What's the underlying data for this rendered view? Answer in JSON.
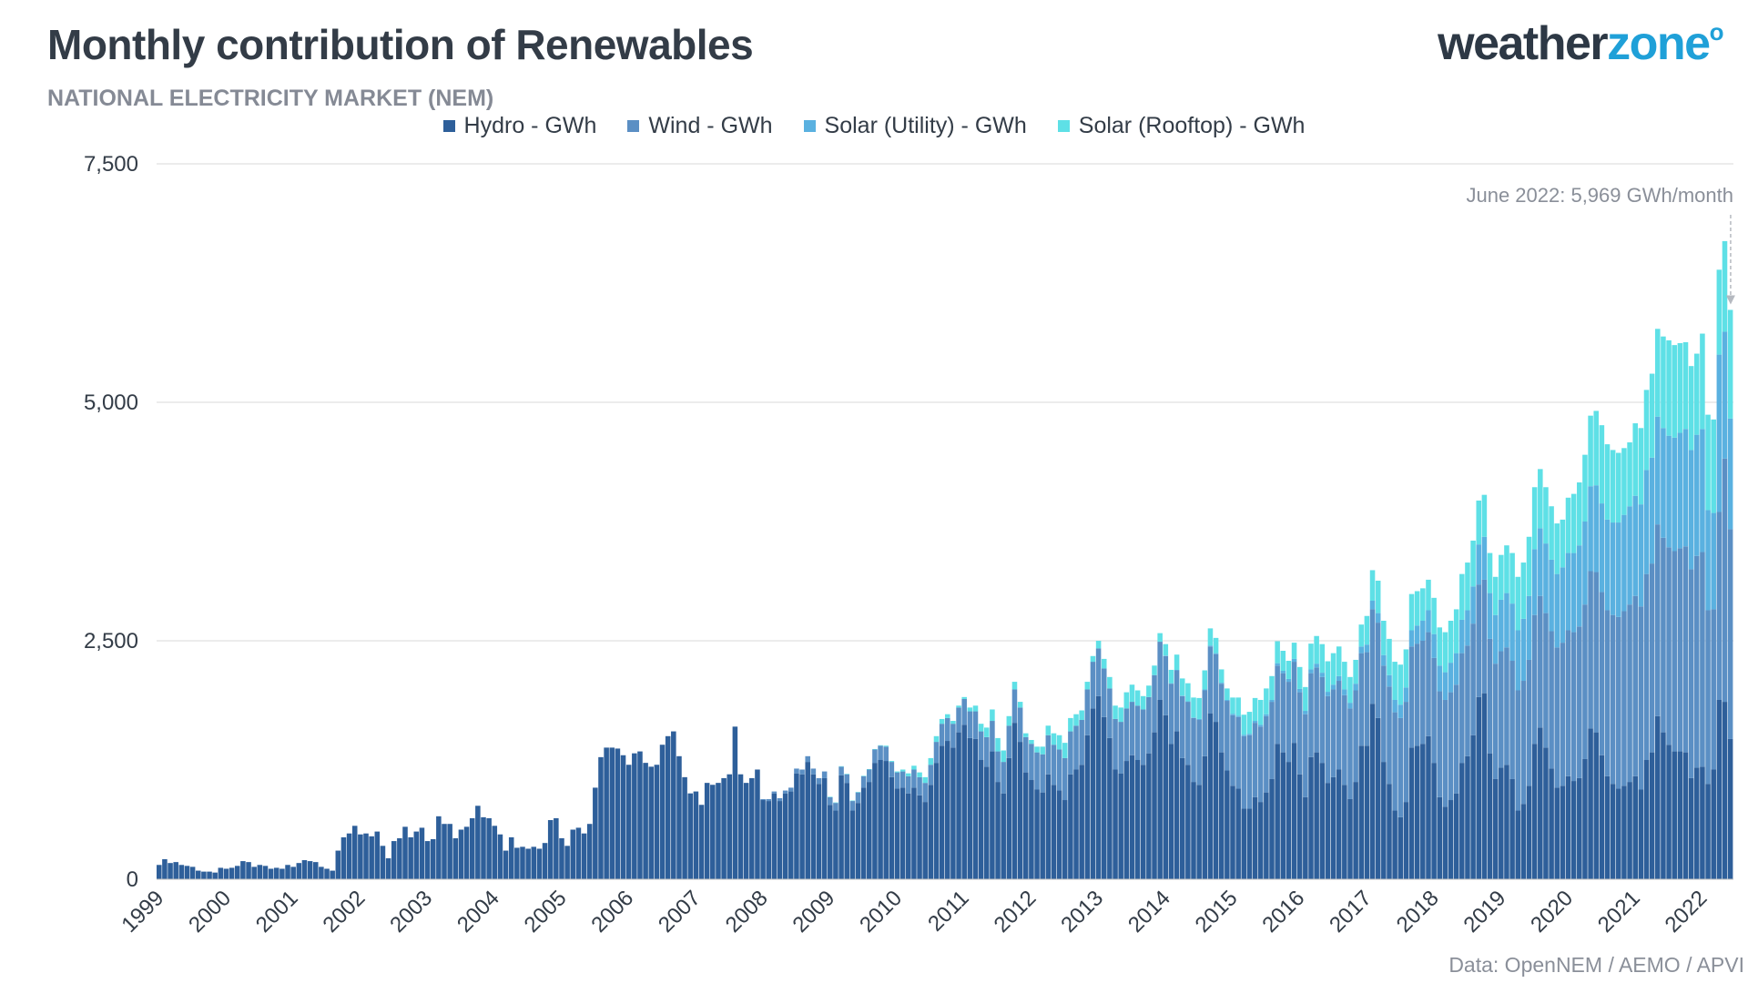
{
  "header": {
    "title": "Monthly contribution of Renewables",
    "subtitle": "NATIONAL ELECTRICITY MARKET (NEM)",
    "logo_part1": "weather",
    "logo_part2": "zone",
    "logo_degree": "o"
  },
  "footer": {
    "source": "Data: OpenNEM / AEMO /  APVI"
  },
  "colors": {
    "hydro": "#2e5f9a",
    "wind": "#5b8fc4",
    "solar_utility": "#5ab1e0",
    "solar_rooftop": "#5ee0e6",
    "gridline": "#d9d9d9",
    "annotation": "#b5b9c0"
  },
  "chart_data": {
    "type": "bar",
    "stacked": true,
    "title": "Monthly contribution of Renewables",
    "subtitle": "NATIONAL ELECTRICITY MARKET (NEM)",
    "ylim": [
      0,
      7500
    ],
    "yticks": [
      "0",
      "2,500",
      "5,000",
      "7,500"
    ],
    "ytick_values": [
      0,
      2500,
      5000,
      7500
    ],
    "grid": true,
    "legend_position": "top-center",
    "x_start": "1999-01",
    "x_end": "2022-06",
    "xtick_labels": [
      "1999",
      "2000",
      "2001",
      "2002",
      "2003",
      "2004",
      "2005",
      "2006",
      "2007",
      "2008",
      "2009",
      "2010",
      "2011",
      "2012",
      "2013",
      "2014",
      "2015",
      "2016",
      "2017",
      "2018",
      "2019",
      "2020",
      "2021",
      "2022"
    ],
    "legend": [
      "Hydro - GWh",
      "Wind - GWh",
      "Solar (Utility) - GWh",
      "Solar (Rooftop) - GWh"
    ],
    "annotation": {
      "text": "June 2022: 5,969 GWh/month",
      "date": "2022-06",
      "value": 5969
    },
    "series": [
      {
        "name": "Hydro - GWh",
        "key": "hydro",
        "values": [
          150,
          210,
          170,
          180,
          150,
          140,
          130,
          90,
          80,
          80,
          70,
          120,
          110,
          120,
          140,
          190,
          180,
          130,
          150,
          140,
          110,
          120,
          110,
          150,
          130,
          170,
          200,
          190,
          180,
          130,
          110,
          90,
          300,
          440,
          480,
          560,
          470,
          480,
          450,
          500,
          350,
          220,
          400,
          430,
          550,
          440,
          500,
          540,
          400,
          420,
          660,
          580,
          580,
          430,
          520,
          550,
          640,
          770,
          650,
          640,
          560,
          470,
          300,
          440,
          330,
          340,
          320,
          340,
          320,
          380,
          620,
          640,
          430,
          350,
          520,
          540,
          480,
          580,
          960,
          1280,
          1380,
          1380,
          1370,
          1300,
          1200,
          1320,
          1340,
          1220,
          1180,
          1200,
          1410,
          1500,
          1550,
          1290,
          1070,
          900,
          920,
          780,
          1010,
          990,
          1010,
          1060,
          1100,
          1600,
          1100,
          1010,
          1060,
          1150,
          830,
          820,
          900,
          820,
          900,
          920,
          1110,
          1100,
          1230,
          1100,
          1000,
          1060,
          780,
          720,
          1090,
          1010,
          720,
          800,
          960,
          1020,
          1220,
          1250,
          1240,
          1070,
          950,
          960,
          900,
          960,
          880,
          810,
          990,
          1220,
          1400,
          1450,
          1380,
          1540,
          1620,
          1480,
          1470,
          1250,
          1180,
          1340,
          1020,
          900,
          1270,
          1640,
          1440,
          1120,
          1040,
          940,
          910,
          1100,
          990,
          930,
          830,
          1100,
          1150,
          1200,
          1510,
          1790,
          1920,
          1700,
          1480,
          1150,
          1110,
          1240,
          1300,
          1250,
          1200,
          1320,
          1540,
          1880,
          1720,
          1420,
          1550,
          1270,
          1200,
          1020,
          990,
          1290,
          1740,
          1650,
          1330,
          1140,
          980,
          950,
          740,
          740,
          860,
          810,
          910,
          1050,
          1420,
          1330,
          1230,
          1430,
          1100,
          860,
          1280,
          1330,
          1220,
          1010,
          1070,
          1150,
          990,
          840,
          1020,
          1400,
          1400,
          1840,
          1690,
          1230,
          1000,
          720,
          650,
          810,
          1380,
          1400,
          1420,
          1500,
          1220,
          860,
          760,
          830,
          900,
          1220,
          1290,
          1510,
          1910,
          1950,
          1320,
          1050,
          1170,
          1200,
          1050,
          720,
          790,
          980,
          1420,
          1590,
          1380,
          1160,
          960,
          980,
          1080,
          1030,
          1060,
          1260,
          1580,
          1540,
          1300,
          1080,
          1000,
          950,
          980,
          1020,
          1080,
          940,
          1250,
          1330,
          1710,
          1540,
          1410,
          1340,
          1340,
          1330,
          1060,
          1170,
          1180,
          1000,
          1150,
          1880,
          1860,
          1470
        ]
      },
      {
        "name": "Wind - GWh",
        "key": "wind",
        "values": [
          0,
          0,
          0,
          0,
          0,
          0,
          0,
          0,
          0,
          0,
          0,
          0,
          0,
          0,
          0,
          0,
          0,
          0,
          0,
          0,
          0,
          0,
          0,
          0,
          0,
          0,
          0,
          0,
          0,
          0,
          0,
          0,
          0,
          0,
          0,
          0,
          0,
          0,
          0,
          0,
          0,
          0,
          0,
          0,
          0,
          0,
          0,
          0,
          0,
          0,
          0,
          0,
          0,
          0,
          0,
          0,
          0,
          0,
          0,
          0,
          0,
          0,
          0,
          0,
          0,
          0,
          0,
          0,
          0,
          0,
          0,
          0,
          0,
          0,
          0,
          0,
          0,
          0,
          0,
          0,
          0,
          0,
          0,
          0,
          0,
          0,
          0,
          0,
          0,
          0,
          0,
          0,
          0,
          0,
          0,
          0,
          0,
          0,
          0,
          0,
          0,
          0,
          0,
          0,
          0,
          0,
          0,
          0,
          10,
          20,
          20,
          30,
          30,
          40,
          50,
          50,
          60,
          60,
          60,
          70,
          80,
          80,
          90,
          90,
          100,
          110,
          120,
          130,
          140,
          150,
          150,
          160,
          170,
          170,
          180,
          190,
          190,
          200,
          210,
          220,
          230,
          240,
          250,
          260,
          270,
          280,
          290,
          300,
          310,
          320,
          320,
          330,
          340,
          350,
          360,
          370,
          380,
          390,
          400,
          410,
          420,
          430,
          440,
          450,
          460,
          470,
          480,
          490,
          500,
          510,
          520,
          530,
          540,
          550,
          560,
          570,
          580,
          590,
          600,
          610,
          620,
          630,
          640,
          650,
          660,
          670,
          680,
          690,
          700,
          710,
          720,
          730,
          740,
          750,
          760,
          770,
          780,
          790,
          800,
          810,
          820,
          830,
          840,
          850,
          860,
          870,
          880,
          890,
          900,
          910,
          920,
          930,
          940,
          950,
          960,
          970,
          980,
          990,
          1000,
          1010,
          1020,
          1030,
          1040,
          1050,
          1060,
          1070,
          1080,
          1090,
          1100,
          1110,
          1120,
          1130,
          1140,
          1150,
          1160,
          1170,
          1180,
          1190,
          1200,
          1210,
          1220,
          1230,
          1240,
          1260,
          1290,
          1320,
          1350,
          1380,
          1410,
          1440,
          1470,
          1500,
          1530,
          1560,
          1590,
          1620,
          1650,
          1680,
          1710,
          1740,
          1770,
          1800,
          1830,
          1860,
          1890,
          1920,
          1950,
          1980,
          2010,
          2040,
          2070,
          2100,
          2130,
          2160,
          2190,
          2220,
          2250,
          1820,
          1680,
          1970,
          2550,
          2200
        ]
      },
      {
        "name": "Solar (Utility) - GWh",
        "key": "solar_utility",
        "values": [
          0,
          0,
          0,
          0,
          0,
          0,
          0,
          0,
          0,
          0,
          0,
          0,
          0,
          0,
          0,
          0,
          0,
          0,
          0,
          0,
          0,
          0,
          0,
          0,
          0,
          0,
          0,
          0,
          0,
          0,
          0,
          0,
          0,
          0,
          0,
          0,
          0,
          0,
          0,
          0,
          0,
          0,
          0,
          0,
          0,
          0,
          0,
          0,
          0,
          0,
          0,
          0,
          0,
          0,
          0,
          0,
          0,
          0,
          0,
          0,
          0,
          0,
          0,
          0,
          0,
          0,
          0,
          0,
          0,
          0,
          0,
          0,
          0,
          0,
          0,
          0,
          0,
          0,
          0,
          0,
          0,
          0,
          0,
          0,
          0,
          0,
          0,
          0,
          0,
          0,
          0,
          0,
          0,
          0,
          0,
          0,
          0,
          0,
          0,
          0,
          0,
          0,
          0,
          0,
          0,
          0,
          0,
          0,
          0,
          0,
          0,
          0,
          0,
          0,
          0,
          0,
          0,
          0,
          0,
          0,
          0,
          0,
          0,
          0,
          0,
          0,
          0,
          0,
          0,
          0,
          0,
          0,
          0,
          0,
          0,
          0,
          0,
          0,
          0,
          0,
          0,
          0,
          0,
          0,
          0,
          0,
          0,
          0,
          0,
          0,
          0,
          0,
          0,
          0,
          0,
          0,
          0,
          0,
          0,
          0,
          0,
          0,
          0,
          0,
          0,
          0,
          0,
          0,
          0,
          0,
          0,
          0,
          0,
          0,
          0,
          0,
          0,
          0,
          0,
          0,
          5,
          5,
          5,
          5,
          5,
          5,
          10,
          10,
          10,
          10,
          10,
          10,
          15,
          15,
          15,
          15,
          20,
          20,
          20,
          20,
          25,
          25,
          30,
          30,
          35,
          35,
          40,
          40,
          45,
          45,
          50,
          50,
          60,
          60,
          70,
          70,
          80,
          90,
          100,
          110,
          120,
          130,
          140,
          150,
          170,
          190,
          210,
          230,
          250,
          270,
          290,
          310,
          330,
          350,
          370,
          390,
          420,
          450,
          480,
          510,
          540,
          570,
          600,
          630,
          650,
          670,
          690,
          710,
          730,
          750,
          770,
          790,
          810,
          830,
          850,
          870,
          890,
          910,
          930,
          950,
          970,
          990,
          1010,
          1030,
          1050,
          1070,
          1090,
          1110,
          1130,
          1150,
          1170,
          1190,
          1210,
          1230,
          1250,
          1270,
          1290,
          1050,
          1010,
          1650,
          1330,
          1160
        ]
      },
      {
        "name": "Solar (Rooftop) - GWh",
        "key": "solar_rooftop",
        "values": [
          0,
          0,
          0,
          0,
          0,
          0,
          0,
          0,
          0,
          0,
          0,
          0,
          0,
          0,
          0,
          0,
          0,
          0,
          0,
          0,
          0,
          0,
          0,
          0,
          0,
          0,
          0,
          0,
          0,
          0,
          0,
          0,
          0,
          0,
          0,
          0,
          0,
          0,
          0,
          0,
          0,
          0,
          0,
          0,
          0,
          0,
          0,
          0,
          0,
          0,
          0,
          0,
          0,
          0,
          0,
          0,
          0,
          0,
          0,
          0,
          0,
          0,
          0,
          0,
          0,
          0,
          0,
          0,
          0,
          0,
          0,
          0,
          0,
          0,
          0,
          0,
          0,
          0,
          0,
          0,
          0,
          0,
          0,
          0,
          0,
          0,
          0,
          0,
          0,
          0,
          0,
          0,
          0,
          0,
          0,
          0,
          0,
          0,
          0,
          0,
          0,
          0,
          0,
          0,
          0,
          0,
          0,
          0,
          0,
          0,
          0,
          0,
          0,
          0,
          0,
          0,
          0,
          0,
          0,
          0,
          5,
          5,
          5,
          5,
          5,
          5,
          5,
          5,
          5,
          5,
          10,
          10,
          10,
          20,
          30,
          40,
          50,
          60,
          70,
          60,
          50,
          40,
          30,
          20,
          20,
          40,
          60,
          80,
          100,
          120,
          140,
          120,
          100,
          80,
          60,
          40,
          40,
          60,
          80,
          100,
          120,
          150,
          160,
          140,
          120,
          100,
          80,
          60,
          80,
          100,
          120,
          140,
          150,
          170,
          180,
          160,
          140,
          120,
          100,
          90,
          120,
          140,
          160,
          180,
          190,
          210,
          220,
          200,
          180,
          160,
          140,
          120,
          170,
          190,
          210,
          230,
          240,
          260,
          270,
          250,
          230,
          210,
          190,
          170,
          230,
          250,
          270,
          290,
          300,
          320,
          330,
          310,
          290,
          270,
          250,
          230,
          300,
          320,
          340,
          360,
          380,
          400,
          420,
          400,
          380,
          360,
          340,
          320,
          380,
          400,
          420,
          440,
          460,
          480,
          500,
          480,
          460,
          440,
          420,
          400,
          470,
          500,
          530,
          560,
          590,
          620,
          650,
          620,
          590,
          560,
          530,
          500,
          580,
          620,
          660,
          700,
          740,
          780,
          820,
          790,
          760,
          730,
          700,
          670,
          760,
          800,
          840,
          880,
          920,
          960,
          1000,
          970,
          940,
          910,
          880,
          850,
          1000,
          1000,
          980,
          890,
          950,
          1139
        ]
      }
    ]
  }
}
